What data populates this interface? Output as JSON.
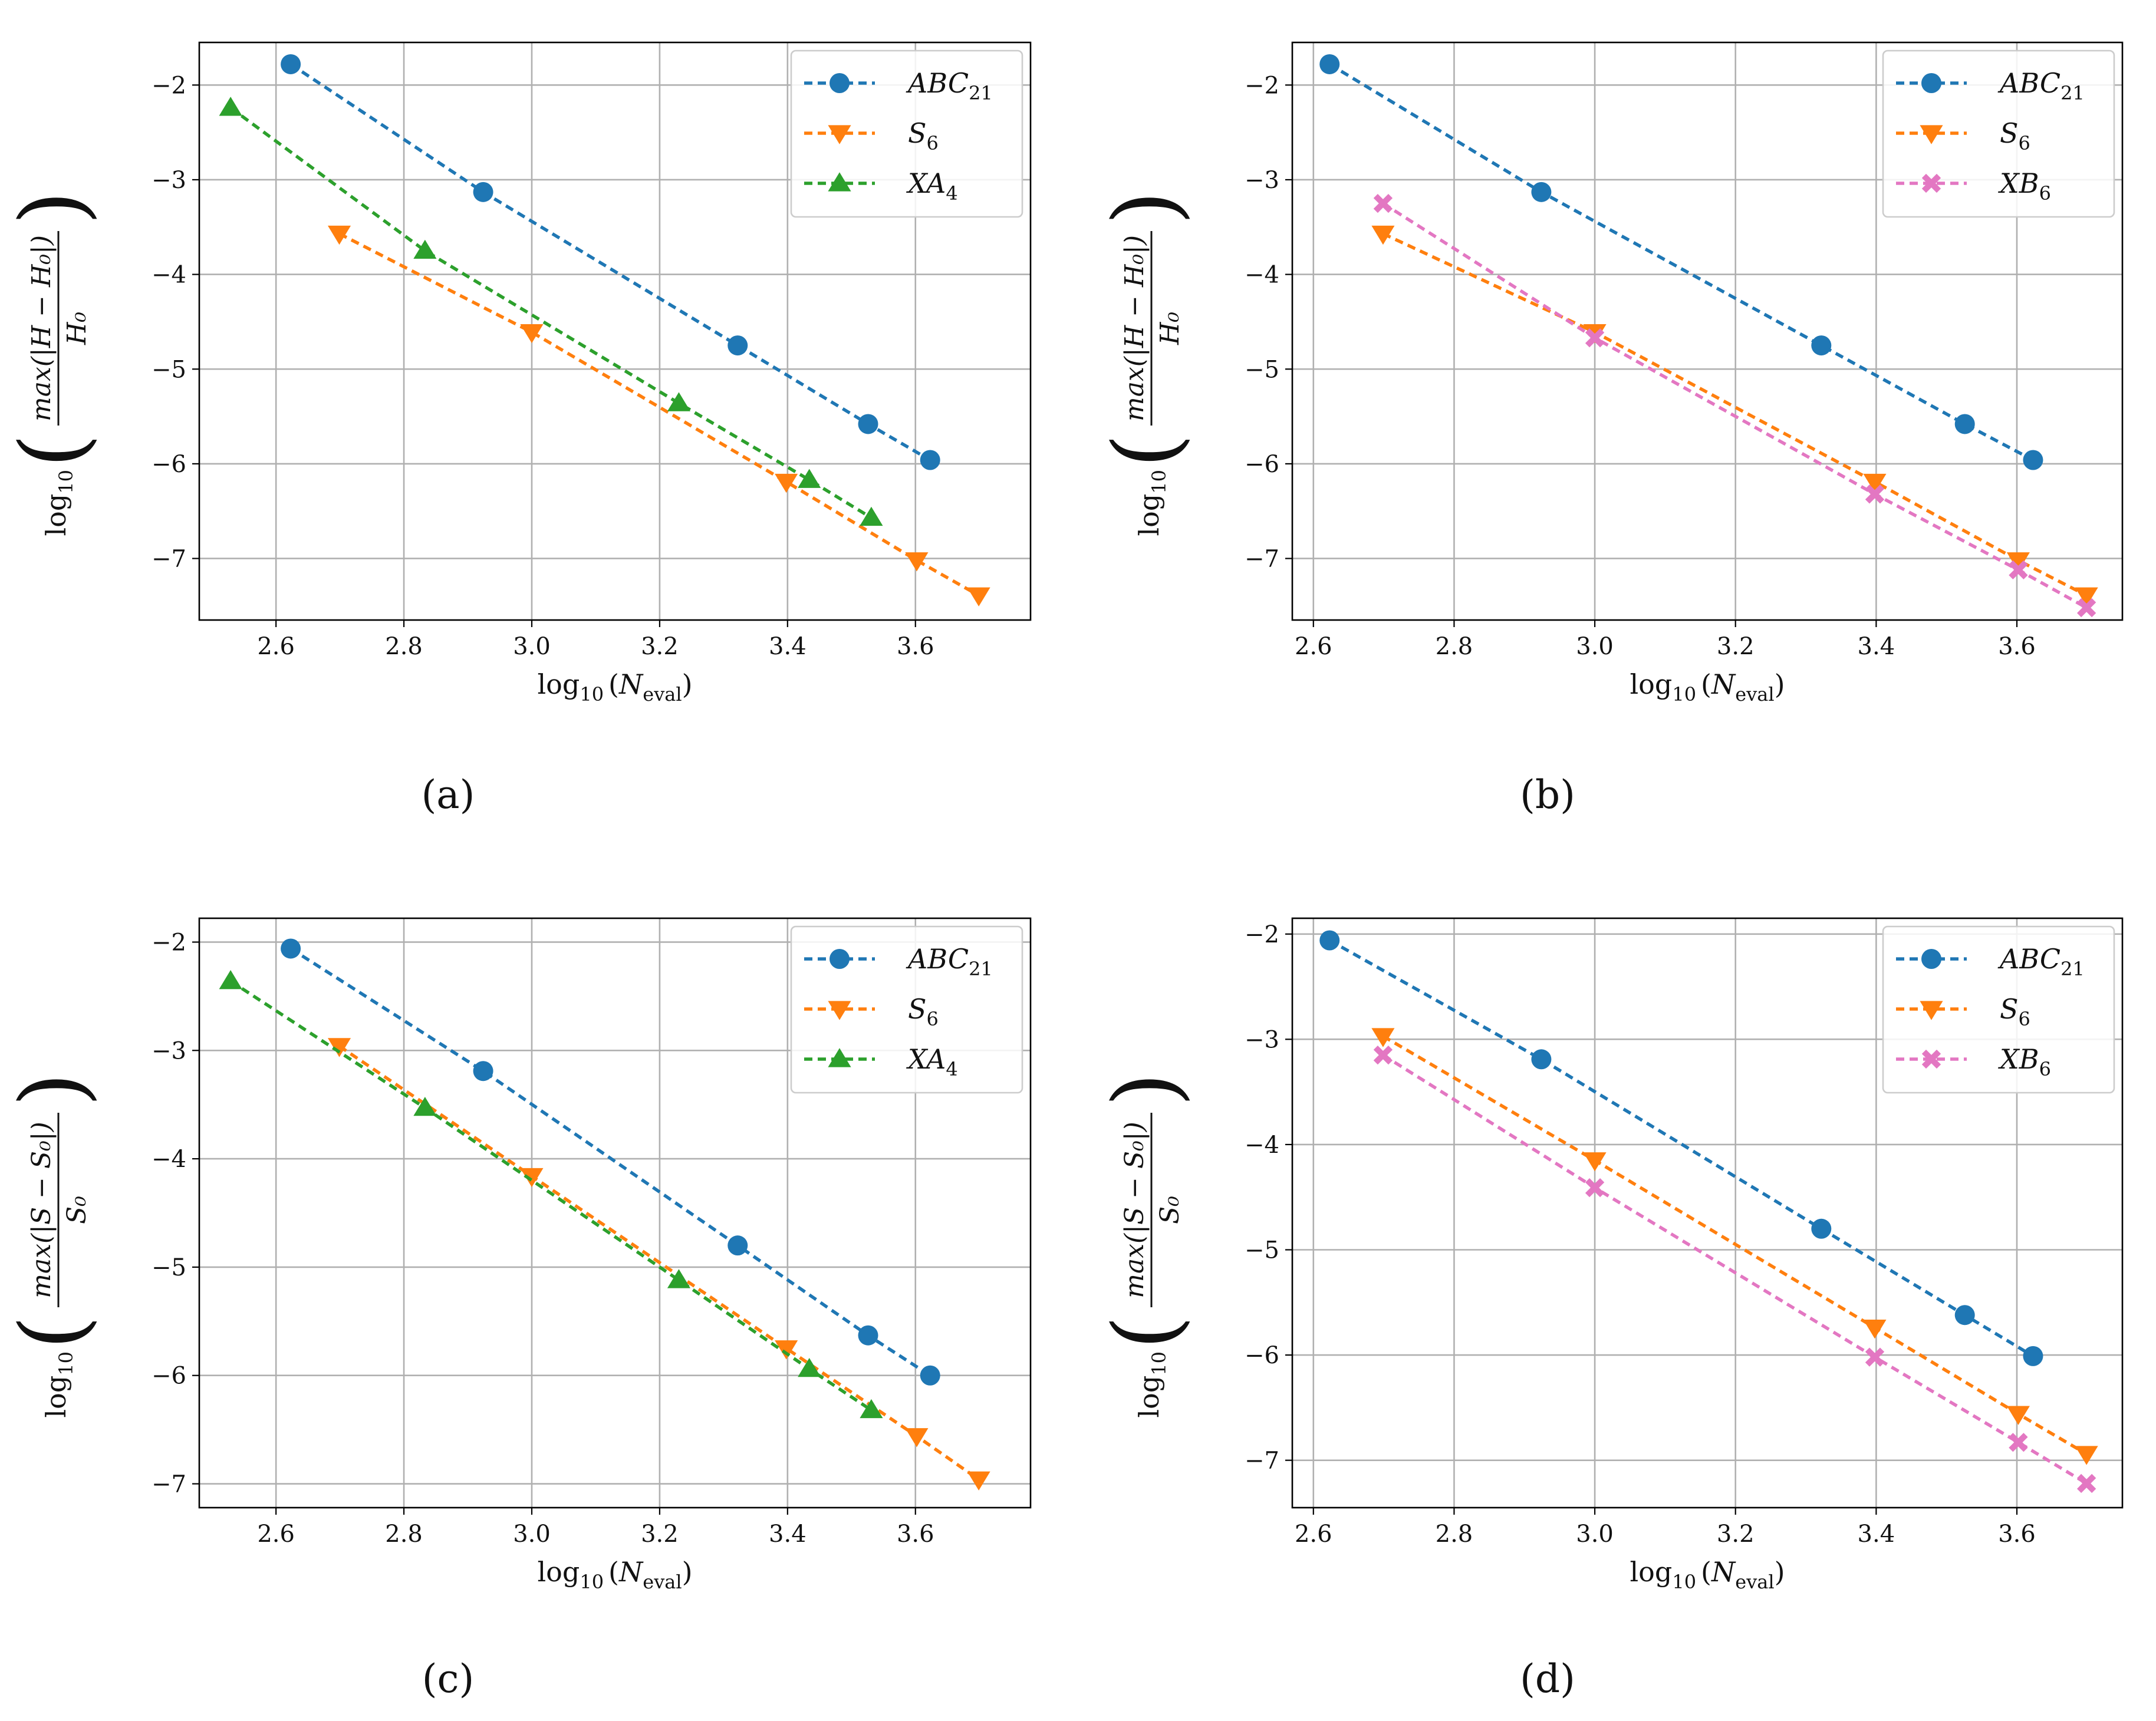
{
  "figure": {
    "panel_labels": [
      "(a)",
      "(b)",
      "(c)",
      "(d)"
    ],
    "xlabel_main": "log",
    "xlabel_sub": "10",
    "xlabel_var": "N",
    "xlabel_var_sub": "eval",
    "ylabel_prefix": "log",
    "ylabel_prefix_sub": "10",
    "energy_numerator": "max(|H − H₀|)",
    "energy_denominator": "H₀",
    "entropy_numerator": "max(|S − S₀|)",
    "entropy_denominator": "S₀"
  },
  "chart_data": [
    {
      "id": "a",
      "type": "line",
      "quantity": "energy",
      "title": "",
      "xlabel": "log10(N_eval)",
      "ylabel": "log10(max(|H - H0|)/H0)",
      "xlim": [
        2.48,
        3.78
      ],
      "ylim": [
        -7.65,
        -1.55
      ],
      "xticks": [
        2.6,
        2.8,
        3.0,
        3.2,
        3.4,
        3.6
      ],
      "xtick_labels": [
        "2.6",
        "2.8",
        "3.0",
        "3.2",
        "3.4",
        "3.6"
      ],
      "yticks": [
        -2,
        -3,
        -4,
        -5,
        -6,
        -7
      ],
      "ytick_labels": [
        "−2",
        "−3",
        "−4",
        "−5",
        "−6",
        "−7"
      ],
      "grid": true,
      "legend_position": "top-right",
      "series": [
        {
          "name": "ABC",
          "name_sub": "21",
          "color": "#1f77b4",
          "marker": "circle",
          "x": [
            2.623,
            2.924,
            3.322,
            3.526,
            3.623
          ],
          "y": [
            -1.78,
            -3.13,
            -4.75,
            -5.58,
            -5.96
          ]
        },
        {
          "name": "S",
          "name_sub": "6",
          "color": "#ff7f0e",
          "marker": "triangle-down",
          "x": [
            2.699,
            3.0,
            3.398,
            3.602,
            3.699
          ],
          "y": [
            -3.57,
            -4.61,
            -6.19,
            -7.02,
            -7.39
          ]
        },
        {
          "name": "XA",
          "name_sub": "4",
          "color": "#2ca02c",
          "marker": "triangle-up",
          "x": [
            2.529,
            2.833,
            3.23,
            3.434,
            3.531
          ],
          "y": [
            -2.24,
            -3.75,
            -5.36,
            -6.17,
            -6.57
          ]
        }
      ]
    },
    {
      "id": "b",
      "type": "line",
      "quantity": "energy",
      "title": "",
      "xlabel": "log10(N_eval)",
      "ylabel": "log10(max(|H - H0|)/H0)",
      "xlim": [
        2.57,
        3.75
      ],
      "ylim": [
        -7.65,
        -1.55
      ],
      "xticks": [
        2.6,
        2.8,
        3.0,
        3.2,
        3.4,
        3.6
      ],
      "xtick_labels": [
        "2.6",
        "2.8",
        "3.0",
        "3.2",
        "3.4",
        "3.6"
      ],
      "yticks": [
        -2,
        -3,
        -4,
        -5,
        -6,
        -7
      ],
      "ytick_labels": [
        "−2",
        "−3",
        "−4",
        "−5",
        "−6",
        "−7"
      ],
      "grid": true,
      "legend_position": "top-right",
      "series": [
        {
          "name": "ABC",
          "name_sub": "21",
          "color": "#1f77b4",
          "marker": "circle",
          "x": [
            2.623,
            2.924,
            3.322,
            3.526,
            3.623
          ],
          "y": [
            -1.78,
            -3.13,
            -4.75,
            -5.58,
            -5.96
          ]
        },
        {
          "name": "S",
          "name_sub": "6",
          "color": "#ff7f0e",
          "marker": "triangle-down",
          "x": [
            2.699,
            3.0,
            3.398,
            3.602,
            3.699
          ],
          "y": [
            -3.57,
            -4.61,
            -6.19,
            -7.02,
            -7.39
          ]
        },
        {
          "name": "XB",
          "name_sub": "6",
          "color": "#e377c2",
          "marker": "x-filled",
          "x": [
            2.699,
            3.0,
            3.398,
            3.602,
            3.699
          ],
          "y": [
            -3.25,
            -4.67,
            -6.32,
            -7.12,
            -7.52
          ]
        }
      ]
    },
    {
      "id": "c",
      "type": "line",
      "quantity": "entropy",
      "title": "",
      "xlabel": "log10(N_eval)",
      "ylabel": "log10(max(|S - S0|)/S0)",
      "xlim": [
        2.48,
        3.78
      ],
      "ylim": [
        -7.22,
        -1.78
      ],
      "xticks": [
        2.6,
        2.8,
        3.0,
        3.2,
        3.4,
        3.6
      ],
      "xtick_labels": [
        "2.6",
        "2.8",
        "3.0",
        "3.2",
        "3.4",
        "3.6"
      ],
      "yticks": [
        -2,
        -3,
        -4,
        -5,
        -6,
        -7
      ],
      "ytick_labels": [
        "−2",
        "−3",
        "−4",
        "−5",
        "−6",
        "−7"
      ],
      "grid": true,
      "legend_position": "top-right",
      "series": [
        {
          "name": "ABC",
          "name_sub": "21",
          "color": "#1f77b4",
          "marker": "circle",
          "x": [
            2.623,
            2.924,
            3.322,
            3.526,
            3.623
          ],
          "y": [
            -2.06,
            -3.19,
            -4.8,
            -5.63,
            -6.0
          ]
        },
        {
          "name": "S",
          "name_sub": "6",
          "color": "#ff7f0e",
          "marker": "triangle-down",
          "x": [
            2.699,
            3.0,
            3.398,
            3.602,
            3.699
          ],
          "y": [
            -2.96,
            -4.16,
            -5.75,
            -6.56,
            -6.96
          ]
        },
        {
          "name": "XA",
          "name_sub": "4",
          "color": "#2ca02c",
          "marker": "triangle-up",
          "x": [
            2.529,
            2.833,
            3.23,
            3.434,
            3.531
          ],
          "y": [
            -2.36,
            -3.53,
            -5.12,
            -5.94,
            -6.32
          ]
        }
      ]
    },
    {
      "id": "d",
      "type": "line",
      "quantity": "entropy",
      "title": "",
      "xlabel": "log10(N_eval)",
      "ylabel": "log10(max(|S - S0|)/S0)",
      "xlim": [
        2.57,
        3.75
      ],
      "ylim": [
        -7.45,
        -1.85
      ],
      "xticks": [
        2.6,
        2.8,
        3.0,
        3.2,
        3.4,
        3.6
      ],
      "xtick_labels": [
        "2.6",
        "2.8",
        "3.0",
        "3.2",
        "3.4",
        "3.6"
      ],
      "yticks": [
        -2,
        -3,
        -4,
        -5,
        -6,
        -7
      ],
      "ytick_labels": [
        "−2",
        "−3",
        "−4",
        "−5",
        "−6",
        "−7"
      ],
      "grid": true,
      "legend_position": "top-right",
      "series": [
        {
          "name": "ABC",
          "name_sub": "21",
          "color": "#1f77b4",
          "marker": "circle",
          "x": [
            2.623,
            2.924,
            3.322,
            3.526,
            3.623
          ],
          "y": [
            -2.06,
            -3.19,
            -4.8,
            -5.62,
            -6.01
          ]
        },
        {
          "name": "S",
          "name_sub": "6",
          "color": "#ff7f0e",
          "marker": "triangle-down",
          "x": [
            2.699,
            3.0,
            3.398,
            3.602,
            3.699
          ],
          "y": [
            -2.97,
            -4.15,
            -5.74,
            -6.56,
            -6.94
          ]
        },
        {
          "name": "XB",
          "name_sub": "6",
          "color": "#e377c2",
          "marker": "x-filled",
          "x": [
            2.699,
            3.0,
            3.398,
            3.602,
            3.699
          ],
          "y": [
            -3.15,
            -4.41,
            -6.02,
            -6.83,
            -7.22
          ]
        }
      ]
    }
  ]
}
